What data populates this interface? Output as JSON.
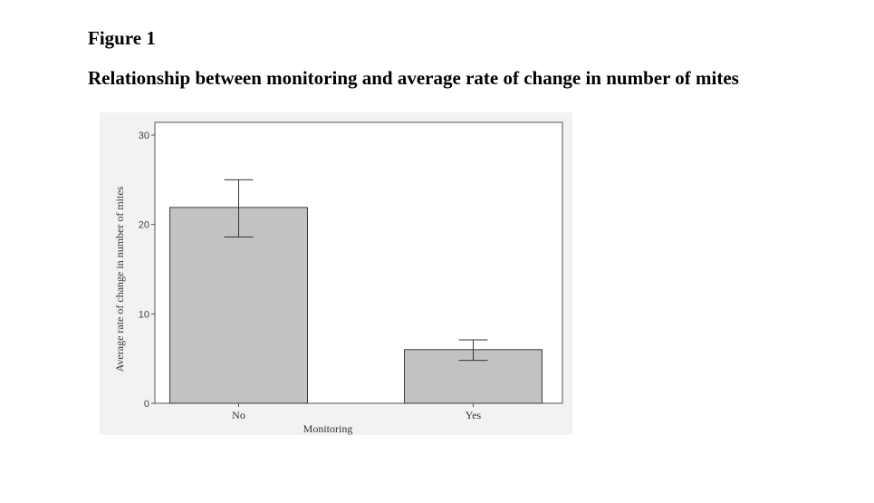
{
  "figure": {
    "label": "Figure 1",
    "title": "Relationship between monitoring and average rate of change in number of mites"
  },
  "chart_data": {
    "type": "bar",
    "title": "",
    "xlabel": "Monitoring",
    "ylabel": "Average rate of change in number of mites",
    "categories": [
      "No",
      "Yes"
    ],
    "values": [
      21.9,
      6.0
    ],
    "error_low": [
      18.6,
      4.8
    ],
    "error_high": [
      25.0,
      7.1
    ],
    "ylim": [
      0,
      30
    ],
    "yticks": [
      0,
      10,
      20,
      30
    ],
    "grid": false,
    "colors": {
      "bar_fill": "#c2c2c2",
      "bar_stroke": "#3a3a3a",
      "error_bar": "#333333",
      "plot_background": "#ffffff",
      "outer_background": "#f2f2f2",
      "frame": "#555555"
    }
  }
}
